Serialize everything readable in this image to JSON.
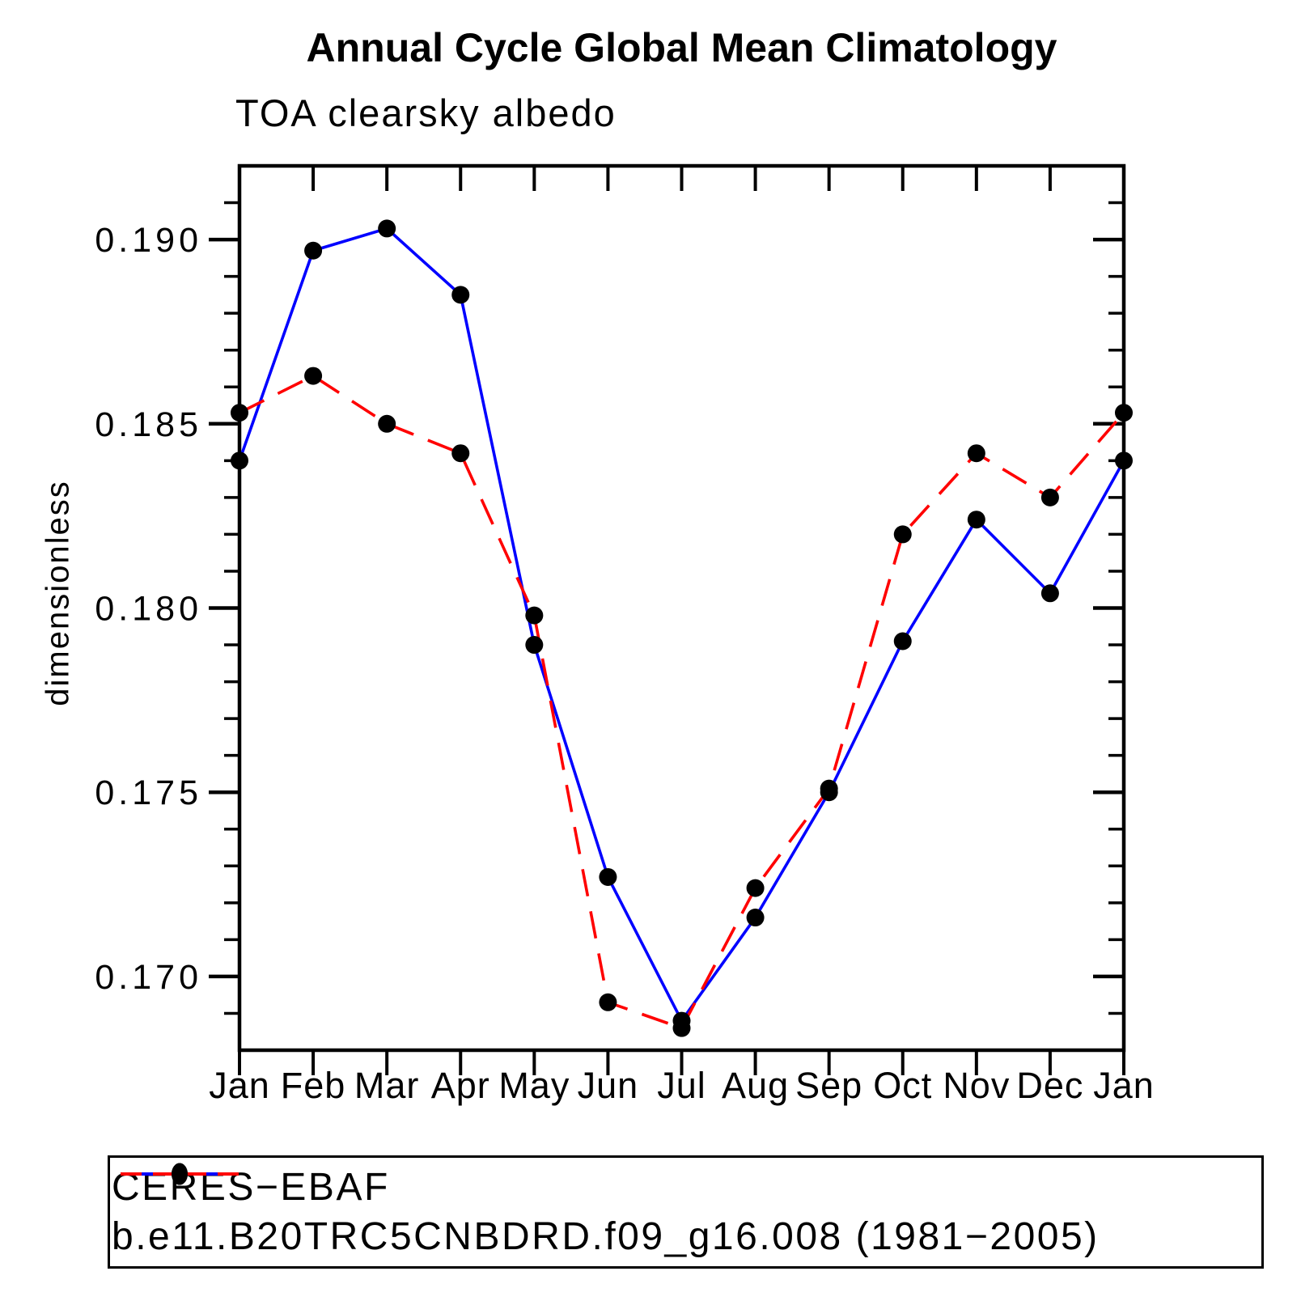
{
  "title": "Annual Cycle Global Mean Climatology",
  "subtitle": "TOA clearsky albedo",
  "y_axis_title": "dimensionless",
  "colors": {
    "background": "#ffffff",
    "axis": "#000000",
    "marker": "#000000",
    "series_obs": "#0000ff",
    "series_model": "#ff0000"
  },
  "legend": {
    "position": "below-chart",
    "entries": [
      {
        "label": "CERES−EBAF",
        "line": "solid",
        "color": "#0000ff",
        "marker": "filled-circle",
        "marker_color": "#000000"
      },
      {
        "label": "b.e11.B20TRC5CNBDRD.f09_g16.008 (1981−2005)",
        "line": "dashed",
        "color": "#ff0000",
        "marker": "filled-circle",
        "marker_color": "#000000"
      }
    ]
  },
  "chart_data": {
    "type": "line",
    "title": "Annual Cycle Global Mean Climatology",
    "subtitle": "TOA clearsky albedo",
    "xlabel": "",
    "ylabel": "dimensionless",
    "x_categories": [
      "Jan",
      "Feb",
      "Mar",
      "Apr",
      "May",
      "Jun",
      "Jul",
      "Aug",
      "Sep",
      "Oct",
      "Nov",
      "Dec",
      "Jan"
    ],
    "series": [
      {
        "name": "CERES-EBAF",
        "color": "#0000ff",
        "line_style": "solid",
        "marker": "circle",
        "marker_color": "#000000",
        "values": [
          0.184,
          0.1897,
          0.1903,
          0.1885,
          0.179,
          0.1727,
          0.1688,
          0.1716,
          0.175,
          0.1791,
          0.1824,
          0.1804,
          0.184
        ]
      },
      {
        "name": "b.e11.B20TRC5CNBDRD.f09_g16.008 (1981-2005)",
        "color": "#ff0000",
        "line_style": "dashed",
        "marker": "circle",
        "marker_color": "#000000",
        "values": [
          0.1853,
          0.1863,
          0.185,
          0.1842,
          0.1798,
          0.1693,
          0.1686,
          0.1724,
          0.1751,
          0.182,
          0.1842,
          0.183,
          0.1853
        ]
      }
    ],
    "ylim": [
      0.168,
      0.192
    ],
    "ytick_major": {
      "values": [
        0.17,
        0.175,
        0.18,
        0.185,
        0.19
      ],
      "labels": [
        "0.170",
        "0.175",
        "0.180",
        "0.185",
        "0.190"
      ]
    },
    "ytick_minor_step": 0.001,
    "grid": false,
    "legend_position": "below"
  }
}
